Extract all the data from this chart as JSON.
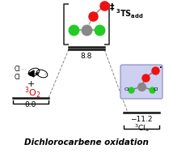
{
  "title": "Dichlorocarbene oxidation",
  "ts_label": "8.8",
  "reactant_label": "0.0",
  "product_label": "−11.2",
  "ts_name_super": "3",
  "ts_name_base": "TS",
  "ts_name_sub": "add",
  "product_name_super": "3",
  "product_name_base": "Cl",
  "product_name_sub": "a",
  "o2_super": "3",
  "dashed_color": "#888888",
  "level_color": "#111111",
  "bracket_color": "#333333",
  "atom_C": "#888888",
  "atom_Cl": "#22cc22",
  "atom_O": "#ee1111",
  "atom_O2": "#cc0000",
  "product_box_facecolor": "#cdd0f0",
  "product_box_edgecolor": "#8888bb"
}
